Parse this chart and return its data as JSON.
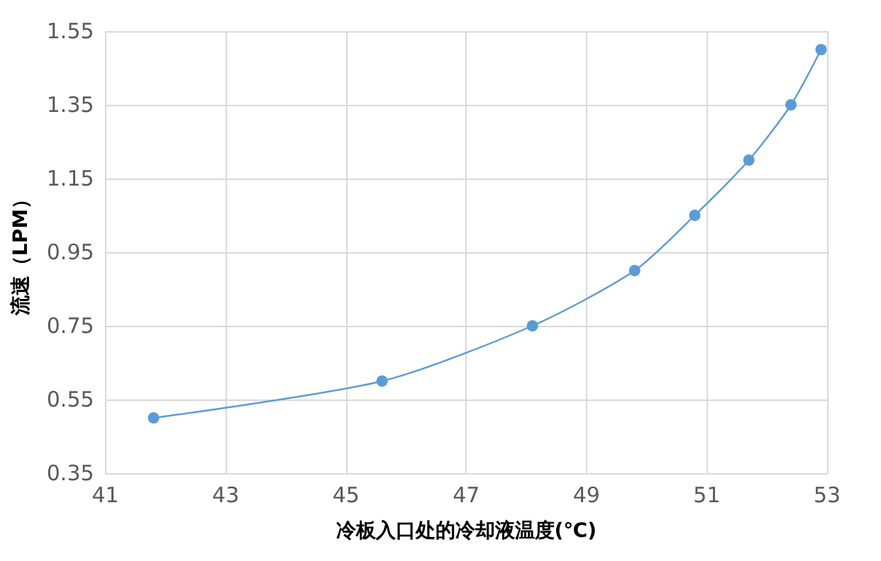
{
  "chart_data": {
    "type": "line",
    "xlabel": "冷板入口处的冷却液温度(℃)",
    "ylabel": "流速（LPM）",
    "x": [
      41.8,
      45.6,
      48.1,
      49.8,
      50.8,
      51.7,
      52.4,
      52.9
    ],
    "series": [
      {
        "color": "#5b9bd5",
        "values": [
          0.5,
          0.6,
          0.75,
          0.9,
          1.05,
          1.2,
          1.35,
          1.5
        ]
      }
    ],
    "xlim": [
      41,
      53
    ],
    "xticks": [
      41,
      43,
      45,
      47,
      49,
      51,
      53
    ],
    "ylim": [
      0.35,
      1.55
    ],
    "yticks": [
      0.35,
      0.55,
      0.75,
      0.95,
      1.15,
      1.35,
      1.55
    ],
    "grid": true,
    "marker": "circle",
    "line_style": "solid"
  }
}
